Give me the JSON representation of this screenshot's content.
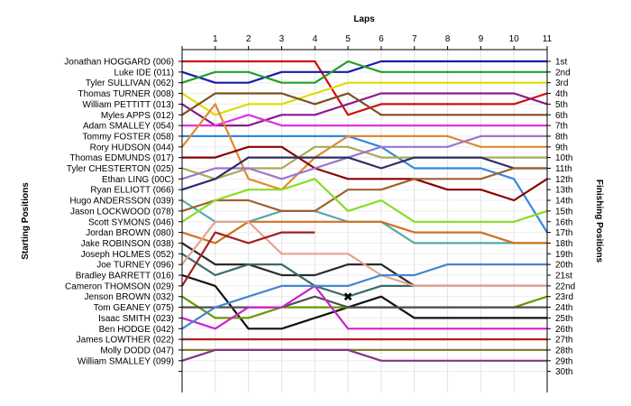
{
  "chart_data": {
    "type": "line",
    "title": "",
    "xlabel": "Laps",
    "ylabel_left": "Starting Positions",
    "ylabel_right": "Finishing Positions",
    "x": [
      0,
      1,
      2,
      3,
      4,
      5,
      6,
      7,
      8,
      9,
      10,
      11
    ],
    "x_tick_labels": [
      "1",
      "2",
      "3",
      "4",
      "5",
      "6",
      "7",
      "8",
      "9",
      "10",
      "11"
    ],
    "xlim": [
      0,
      11
    ],
    "ylim": [
      1,
      30
    ],
    "y_inverted": true,
    "grid": true,
    "driver_labels": [
      "Jonathan HOGGARD (006)",
      "Luke IDE (011)",
      "Tyler SULLIVAN (062)",
      "Thomas TURNER (008)",
      "William PETTITT (013)",
      "Myles APPS (012)",
      "Adam SMALLEY (054)",
      "Tommy FOSTER (058)",
      "Rory HUDSON (044)",
      "Thomas EDMUNDS (017)",
      "Tyler CHESTERTON (025)",
      "Ethan LING (00C)",
      "Ryan ELLIOTT (066)",
      "Hugo ANDERSSON (039)",
      "Jason LOCKWOOD (078)",
      "Scott SYMONS (046)",
      "Jordan BROWN (080)",
      "Jake ROBINSON (038)",
      "Joseph HOLMES (052)",
      "Joe TURNEY (096)",
      "Bradley BARRETT (016)",
      "Cameron THOMSON (029)",
      "Jenson BROWN (032)",
      "Tom GEANEY (075)",
      "Isaac SMITH (023)",
      "Ben HODGE (042)",
      "James LOWTHER (022)",
      "Molly DODD (047)",
      "William SMALLEY (099)"
    ],
    "finishing_labels": [
      "1st",
      "2nd",
      "3rd",
      "4th",
      "5th",
      "6th",
      "7th",
      "8th",
      "9th",
      "10th",
      "11th",
      "12th",
      "13th",
      "14th",
      "15th",
      "16th",
      "17th",
      "18th",
      "19th",
      "20th",
      "21st",
      "22nd",
      "23rd",
      "24th",
      "25th",
      "26th",
      "27th",
      "28th",
      "29th",
      "30th"
    ],
    "series": [
      {
        "name": "Jonathan HOGGARD (006)",
        "color": "#cc1111",
        "values": [
          1,
          1,
          1,
          1,
          1,
          6,
          5,
          5,
          5,
          5,
          5,
          4
        ]
      },
      {
        "name": "Luke IDE (011)",
        "color": "#1a1aaa",
        "values": [
          2,
          3,
          3,
          2,
          2,
          2,
          1,
          1,
          1,
          1,
          1,
          1
        ]
      },
      {
        "name": "Tyler SULLIVAN (062)",
        "color": "#23a023",
        "values": [
          3,
          2,
          2,
          3,
          3,
          1,
          2,
          2,
          2,
          2,
          2,
          2
        ]
      },
      {
        "name": "Thomas TURNER (008)",
        "color": "#dddd00",
        "values": [
          4,
          6,
          5,
          5,
          4,
          3,
          3,
          3,
          3,
          3,
          3,
          3
        ]
      },
      {
        "name": "William PETTITT (013)",
        "color": "#8b1a8b",
        "values": [
          5,
          7,
          7,
          6,
          6,
          5,
          4,
          4,
          4,
          4,
          4,
          5
        ]
      },
      {
        "name": "Myles APPS (012)",
        "color": "#7b5020",
        "values": [
          6,
          4,
          4,
          4,
          5,
          4,
          6,
          6,
          6,
          6,
          6,
          6
        ]
      },
      {
        "name": "Adam SMALLEY (054)",
        "color": "#dd33dd",
        "values": [
          7,
          7,
          6,
          7,
          7,
          7,
          7,
          7,
          7,
          7,
          7,
          7
        ]
      },
      {
        "name": "Tommy FOSTER (058)",
        "color": "#3388dd",
        "values": [
          8,
          8,
          8,
          8,
          8,
          8,
          9,
          11,
          11,
          11,
          12,
          17
        ]
      },
      {
        "name": "Rory HUDSON (044)",
        "color": "#e08a30",
        "values": [
          9,
          5,
          12,
          13,
          10,
          8,
          8,
          8,
          8,
          9,
          9,
          9
        ]
      },
      {
        "name": "Thomas EDMUNDS (017)",
        "color": "#880000",
        "values": [
          10,
          10,
          9,
          9,
          11,
          12,
          12,
          12,
          13,
          13,
          14,
          12
        ]
      },
      {
        "name": "Tyler CHESTERTON (025)",
        "color": "#aaaa55",
        "values": [
          11,
          12,
          11,
          11,
          9,
          9,
          10,
          10,
          10,
          10,
          10,
          10
        ]
      },
      {
        "name": "Ethan LING (00C)",
        "color": "#9977cc",
        "values": [
          12,
          11,
          11,
          12,
          11,
          10,
          9,
          9,
          9,
          8,
          8,
          8
        ]
      },
      {
        "name": "Ryan ELLIOTT (066)",
        "color": "#2d2d66",
        "values": [
          13,
          12,
          10,
          10,
          10,
          10,
          11,
          10,
          10,
          10,
          11,
          11
        ]
      },
      {
        "name": "Hugo ANDERSSON (039)",
        "color": "#55aaaa",
        "values": [
          14,
          16,
          16,
          15,
          15,
          16,
          16,
          18,
          18,
          18,
          18,
          18
        ]
      },
      {
        "name": "Jason LOCKWOOD (078)",
        "color": "#a06030",
        "values": [
          15,
          14,
          14,
          15,
          15,
          13,
          13,
          12,
          12,
          12,
          11,
          11
        ]
      },
      {
        "name": "Scott SYMONS (046)",
        "color": "#88dd22",
        "values": [
          16,
          14,
          13,
          13,
          12,
          15,
          14,
          16,
          16,
          16,
          16,
          15
        ]
      },
      {
        "name": "Jordan BROWN (080)",
        "color": "#d07020",
        "values": [
          17,
          18,
          16,
          16,
          16,
          16,
          16,
          17,
          17,
          17,
          18,
          18
        ]
      },
      {
        "name": "Jake ROBINSON (038)",
        "color": "#2a2a2a",
        "values": [
          18,
          20,
          20,
          21,
          21,
          20,
          20,
          22,
          22,
          22,
          22,
          22
        ]
      },
      {
        "name": "Joseph HOLMES (052)",
        "color": "#3a6a6a",
        "values": [
          19,
          21,
          20,
          20,
          22,
          23,
          22,
          22,
          22,
          22,
          22,
          22
        ]
      },
      {
        "name": "Joe TURNEY (096)",
        "color": "#e8a090",
        "values": [
          20,
          16,
          16,
          19,
          19,
          19,
          21,
          22,
          22,
          22,
          22,
          22
        ]
      },
      {
        "name": "Bradley BARRETT (016)",
        "color": "#111111",
        "values": [
          21,
          22,
          26,
          26,
          25,
          24,
          23,
          25,
          25,
          25,
          25,
          25
        ]
      },
      {
        "name": "Cameron THOMSON (029)",
        "color": "#a02020",
        "values": [
          22,
          17,
          18,
          17,
          17,
          null,
          null,
          null,
          null,
          null,
          null,
          null
        ]
      },
      {
        "name": "Jenson BROWN (032)",
        "color": "#669900",
        "values": [
          23,
          25,
          25,
          24,
          24,
          24,
          24,
          24,
          24,
          24,
          24,
          23
        ]
      },
      {
        "name": "Tom GEANEY (075)",
        "color": "#4f4f4f",
        "values": [
          24,
          24,
          24,
          24,
          23,
          24,
          24,
          24,
          24,
          24,
          24,
          24
        ]
      },
      {
        "name": "Isaac SMITH (023)",
        "color": "#cc22cc",
        "values": [
          25,
          26,
          24,
          24,
          22,
          26,
          26,
          26,
          26,
          26,
          26,
          26
        ]
      },
      {
        "name": "Ben HODGE (042)",
        "color": "#4488cc",
        "values": [
          26,
          24,
          23,
          22,
          22,
          22,
          21,
          21,
          20,
          20,
          20,
          20
        ]
      },
      {
        "name": "James LOWTHER (022)",
        "color": "#aa2222",
        "values": [
          27,
          27,
          27,
          27,
          27,
          27,
          27,
          27,
          27,
          27,
          27,
          27
        ]
      },
      {
        "name": "Molly DODD (047)",
        "color": "#808030",
        "values": [
          28,
          28,
          28,
          28,
          28,
          28,
          28,
          28,
          28,
          28,
          28,
          28
        ]
      },
      {
        "name": "William SMALLEY (099)",
        "color": "#883388",
        "values": [
          29,
          28,
          28,
          28,
          28,
          28,
          29,
          29,
          29,
          29,
          29,
          29
        ]
      }
    ],
    "retired_marker": {
      "x": 5,
      "y": 23,
      "symbol": "✖",
      "color": "#cc0000"
    }
  }
}
